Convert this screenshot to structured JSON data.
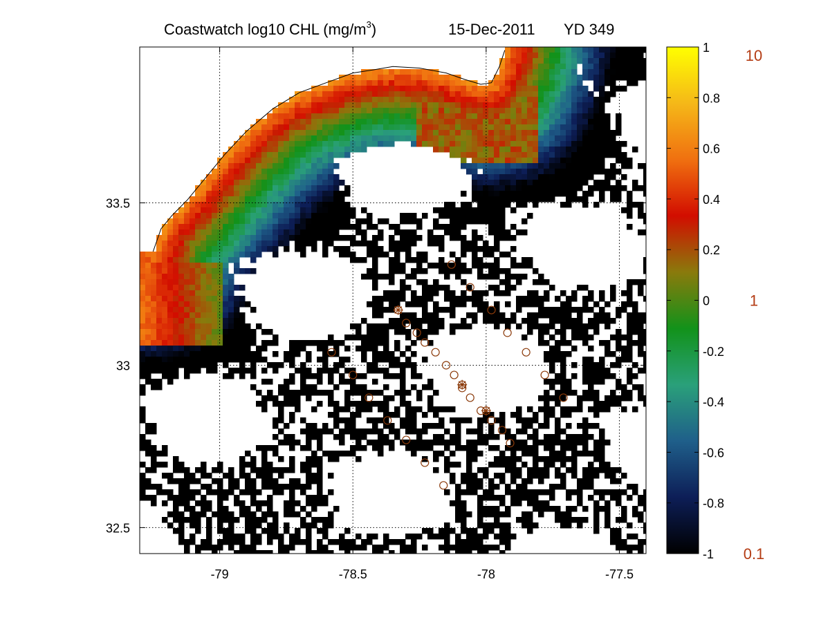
{
  "chart_data": {
    "type": "heatmap",
    "title": {
      "main": "Coastwatch  log10  CHL (mg/m",
      "superscript": "3",
      "close": ")",
      "date": "15-Dec-2011",
      "yearday": "YD 349"
    },
    "xlim": [
      -79.3,
      -77.4
    ],
    "ylim": [
      32.42,
      33.98
    ],
    "x_ticks": [
      -79,
      -78.5,
      -78,
      -77.5
    ],
    "x_tick_labels": [
      "-79",
      "-78.5",
      "-78",
      "-77.5"
    ],
    "y_ticks": [
      32.5,
      33,
      33.5
    ],
    "y_tick_labels": [
      "32.5",
      "33",
      "33.5"
    ],
    "grid": true,
    "colormap": {
      "range": [
        -1,
        1
      ],
      "ticks": [
        1,
        0.8,
        0.6,
        0.4,
        0.2,
        0,
        -0.2,
        -0.4,
        -0.6,
        -0.8,
        -1
      ],
      "tick_labels": [
        "1",
        "0.8",
        "0.6",
        "0.4",
        "0.2",
        "0",
        "-0.2",
        "-0.4",
        "-0.6",
        "-0.8",
        "-1"
      ],
      "concentration_labels": [
        {
          "value": 1,
          "label": "10"
        },
        {
          "value": 0,
          "label": "1"
        },
        {
          "value": -1,
          "label": "0.1"
        }
      ],
      "stops": [
        "#000000",
        "#0d1e57",
        "#1f5f8a",
        "#2aa07a",
        "#12921a",
        "#8a7a0c",
        "#d20d00",
        "#f07010",
        "#f5b818",
        "#ffff00"
      ]
    },
    "coastline": [
      [
        -79.25,
        33.35
      ],
      [
        -79.22,
        33.42
      ],
      [
        -79.18,
        33.46
      ],
      [
        -79.12,
        33.51
      ],
      [
        -79.05,
        33.58
      ],
      [
        -78.98,
        33.65
      ],
      [
        -78.9,
        33.72
      ],
      [
        -78.8,
        33.79
      ],
      [
        -78.7,
        33.84
      ],
      [
        -78.6,
        33.87
      ],
      [
        -78.5,
        33.9
      ],
      [
        -78.42,
        33.91
      ],
      [
        -78.35,
        33.92
      ],
      [
        -78.25,
        33.915
      ],
      [
        -78.15,
        33.9
      ],
      [
        -78.08,
        33.88
      ],
      [
        -78.02,
        33.865
      ],
      [
        -77.98,
        33.87
      ],
      [
        -77.95,
        33.92
      ],
      [
        -77.93,
        33.97
      ]
    ],
    "stations_circle": [
      [
        -78.13,
        33.31
      ],
      [
        -78.06,
        33.24
      ],
      [
        -77.98,
        33.17
      ],
      [
        -78.3,
        33.13
      ],
      [
        -78.26,
        33.1
      ],
      [
        -77.92,
        33.1
      ],
      [
        -78.23,
        33.07
      ],
      [
        -78.19,
        33.04
      ],
      [
        -78.58,
        33.04
      ],
      [
        -77.85,
        33.04
      ],
      [
        -78.15,
        33.0
      ],
      [
        -78.12,
        32.97
      ],
      [
        -78.5,
        32.97
      ],
      [
        -77.78,
        32.97
      ],
      [
        -78.09,
        32.93
      ],
      [
        -78.06,
        32.9
      ],
      [
        -78.44,
        32.9
      ],
      [
        -77.71,
        32.9
      ],
      [
        -78.02,
        32.86
      ],
      [
        -77.98,
        32.83
      ],
      [
        -78.37,
        32.83
      ],
      [
        -77.94,
        32.8
      ],
      [
        -78.3,
        32.77
      ],
      [
        -77.91,
        32.76
      ],
      [
        -78.23,
        32.7
      ],
      [
        -78.16,
        32.63
      ]
    ],
    "stations_star": [
      [
        -78.33,
        33.17
      ],
      [
        -78.09,
        32.94
      ],
      [
        -78.0,
        32.86
      ]
    ],
    "colors": {
      "land_fill": "#ffffff",
      "coast_line": "#000000",
      "marker": "#8b3a0a",
      "nodata": "#ffffff"
    }
  }
}
